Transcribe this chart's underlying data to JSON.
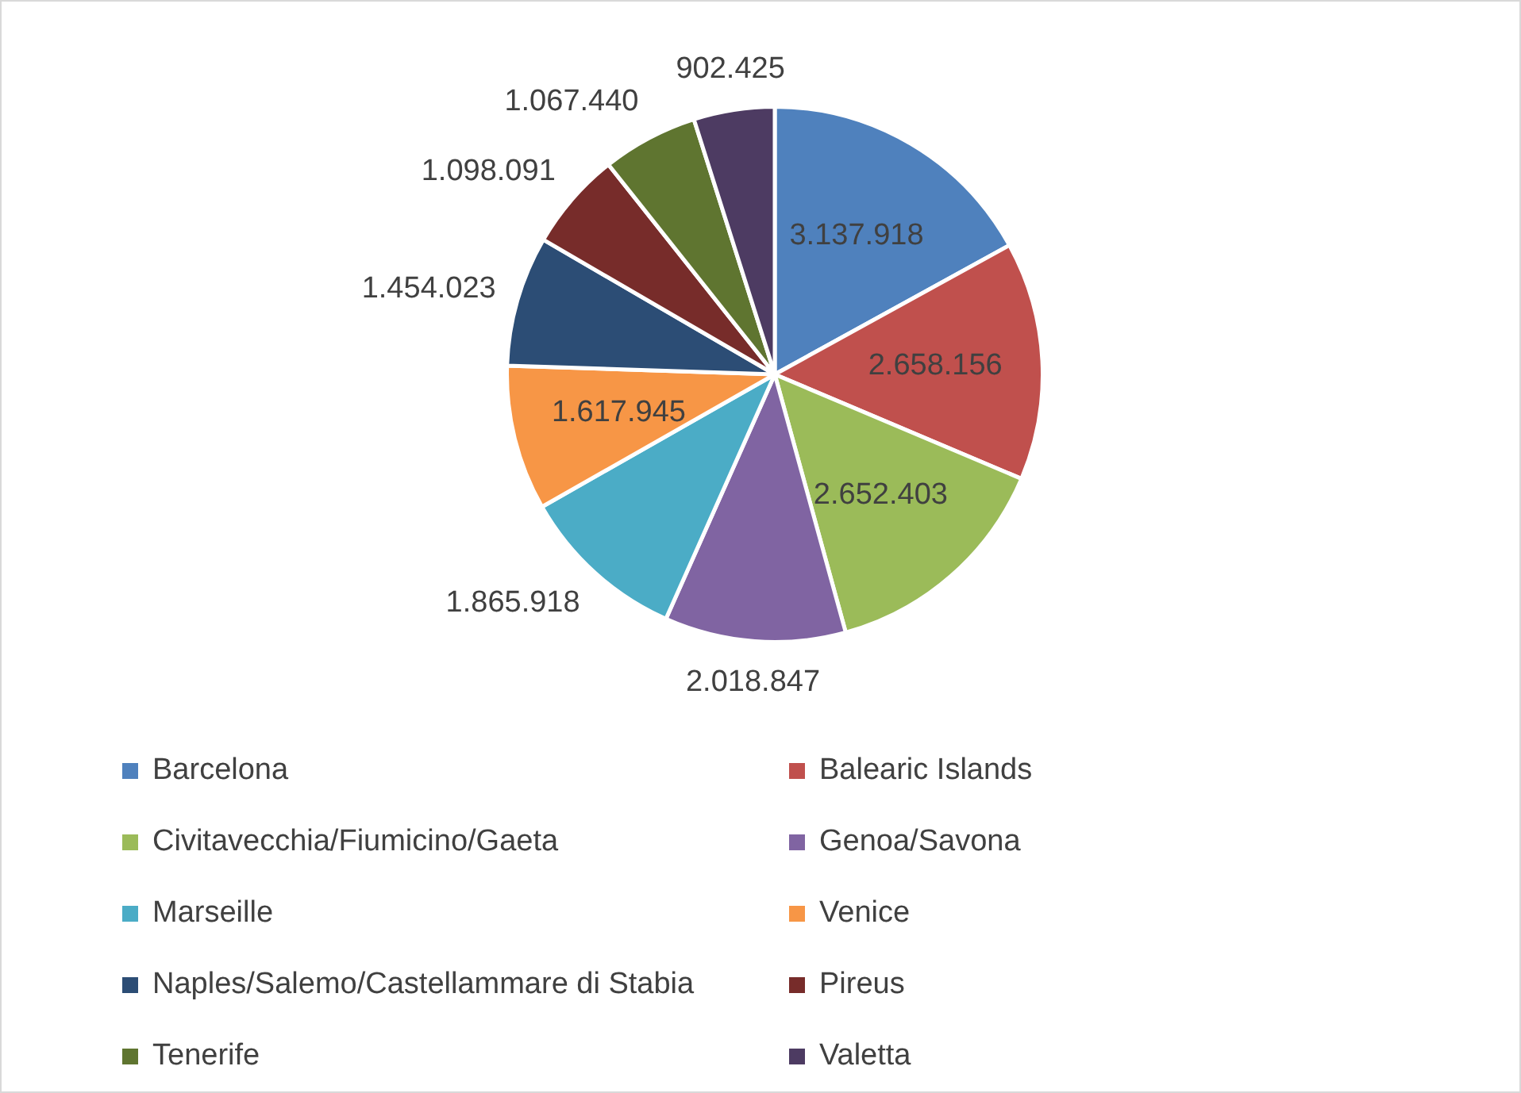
{
  "chart_data": {
    "type": "pie",
    "categories": [
      "Barcelona",
      "Balearic Islands",
      "Civitavecchia/Fiumicino/Gaeta",
      "Genoa/Savona",
      "Marseille",
      "Venice",
      "Naples/Salemo/Castellammare di Stabia",
      "Pireus",
      "Tenerife",
      "Valetta"
    ],
    "values": [
      3137918,
      2658156,
      2652403,
      2018847,
      1865918,
      1617945,
      1454023,
      1098091,
      1067440,
      902425
    ],
    "value_labels": [
      "3.137.918",
      "2.658.156",
      "2.652.403",
      "2.018.847",
      "1.865.918",
      "1.617.945",
      "1.454.023",
      "1.098.091",
      "1.067.440",
      "902.425"
    ],
    "colors": [
      "#4f81bd",
      "#c0504d",
      "#9bbb59",
      "#8064a2",
      "#4bacc6",
      "#f79646",
      "#2c4d75",
      "#772c2a",
      "#5f7530",
      "#4d3b62"
    ],
    "legend": "bottom"
  }
}
